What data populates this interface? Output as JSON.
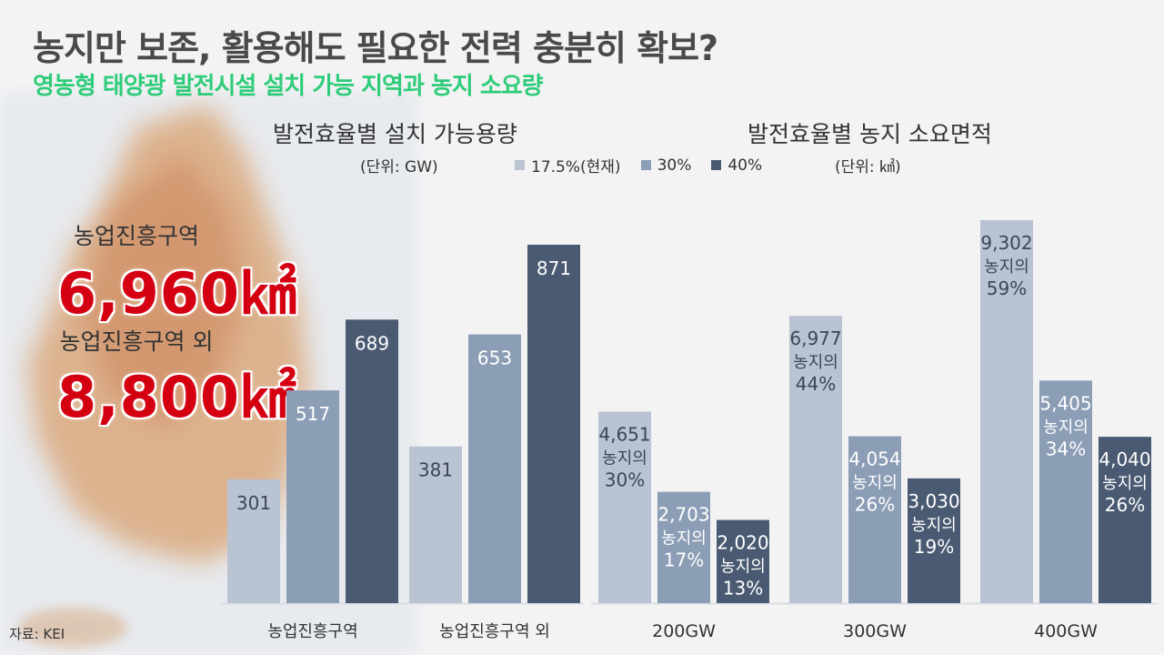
{
  "header": {
    "title": "농지만 보존, 활용해도 필요한 전력 충분히 확보?",
    "subtitle": "영농형 태양광 발전시설 설치 가능 지역과 농지 소요량"
  },
  "regions": [
    {
      "label": "농업진흥구역",
      "value": "6,960㎢"
    },
    {
      "label": "농업진흥구역 외",
      "value": "8,800㎢"
    }
  ],
  "source": "자료: KEI",
  "legend": [
    {
      "label": "17.5%(현재)",
      "color": "#b9c3d1"
    },
    {
      "label": "30%",
      "color": "#8c9db6"
    },
    {
      "label": "40%",
      "color": "#4a5a72"
    }
  ],
  "chart_data": [
    {
      "type": "bar",
      "title": "발전효율별 설치 가능용량",
      "unit": "(단위: GW)",
      "categories": [
        "농업진흥구역",
        "농업진흥구역 외"
      ],
      "series": [
        {
          "name": "17.5%(현재)",
          "values": [
            301,
            381
          ],
          "labels": [
            "301",
            "381"
          ]
        },
        {
          "name": "30%",
          "values": [
            517,
            653
          ],
          "labels": [
            "517",
            "653"
          ]
        },
        {
          "name": "40%",
          "values": [
            689,
            871
          ],
          "labels": [
            "689",
            "871"
          ]
        }
      ]
    },
    {
      "type": "bar",
      "title": "발전효율별 농지 소요면적",
      "unit": "(단위: ㎢)",
      "categories": [
        "200GW",
        "300GW",
        "400GW"
      ],
      "series": [
        {
          "name": "17.5%(현재)",
          "values": [
            4651,
            6977,
            9302
          ],
          "labels": [
            "4,651",
            "6,977",
            "9,302"
          ],
          "share": [
            "농지의 30%",
            "농지의 44%",
            "농지의 59%"
          ]
        },
        {
          "name": "30%",
          "values": [
            2703,
            4054,
            5405
          ],
          "labels": [
            "2,703",
            "4,054",
            "5,405"
          ],
          "share": [
            "농지의 17%",
            "농지의 26%",
            "농지의 34%"
          ]
        },
        {
          "name": "40%",
          "values": [
            2020,
            3030,
            4040
          ],
          "labels": [
            "2,020",
            "3,030",
            "4,040"
          ],
          "share": [
            "농지의 13%",
            "농지의 19%",
            "농지의 26%"
          ]
        }
      ]
    }
  ]
}
